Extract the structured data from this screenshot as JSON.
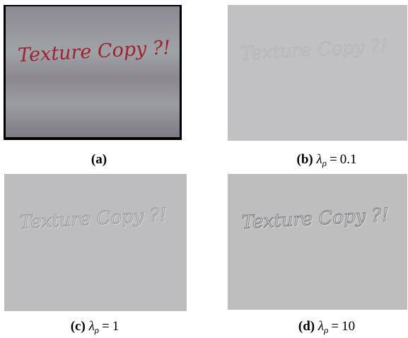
{
  "panels": {
    "a": {
      "image_text": "Texture Copy ?!",
      "caption_letter": "(a)"
    },
    "b": {
      "image_text": "Texture Copy ?!",
      "caption_letter": "(b)",
      "caption_symbol": "λ",
      "caption_subscript": "ρ",
      "caption_equals": "=",
      "caption_value": "0.1"
    },
    "c": {
      "image_text": "Texture Copy ?!",
      "caption_letter": "(c)",
      "caption_symbol": "λ",
      "caption_subscript": "ρ",
      "caption_equals": "=",
      "caption_value": "1"
    },
    "d": {
      "image_text": "Texture Copy ?!",
      "caption_letter": "(d)",
      "caption_symbol": "λ",
      "caption_subscript": "ρ",
      "caption_equals": "=",
      "caption_value": "10"
    }
  },
  "colors": {
    "photo_background": "#8b8790",
    "handwriting": "#a0222e",
    "render_background": "#bfbfc1",
    "embossed_text": "#a9a9ac"
  }
}
